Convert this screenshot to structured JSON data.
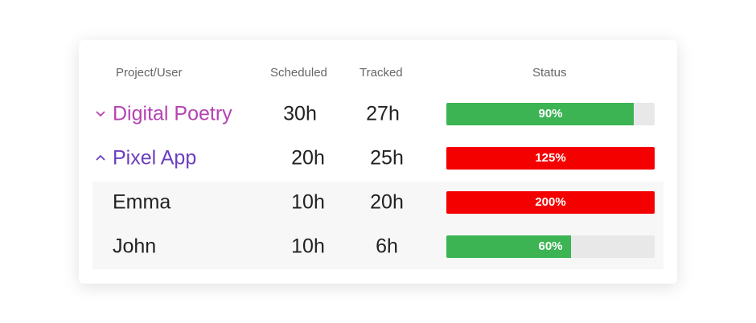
{
  "table": {
    "headers": [
      "Project/User",
      "Scheduled",
      "Tracked",
      "Status"
    ],
    "rows": [
      {
        "name": "Digital Poetry",
        "name_color": "#b543b3",
        "expand": "collapsed",
        "scheduled": "30h",
        "tracked": "27h",
        "status": {
          "value": 90,
          "label": "90%"
        },
        "status_color": "#3cb454"
      },
      {
        "name": "Pixel App",
        "name_color": "#6b3fc0",
        "expand": "expanded",
        "scheduled": "20h",
        "tracked": "25h",
        "status": {
          "value": 125,
          "label": "125%"
        },
        "status_color": "#f50000"
      },
      {
        "name": "Emma",
        "name_color": "#222222",
        "expand": "child",
        "scheduled": "10h",
        "tracked": "20h",
        "status": {
          "value": 200,
          "label": "200%"
        },
        "status_color": "#f50000"
      },
      {
        "name": "John",
        "name_color": "#222222",
        "expand": "child",
        "scheduled": "10h",
        "tracked": "6h",
        "status": {
          "value": 60,
          "label": "60%"
        },
        "status_color": "#3cb454"
      }
    ]
  }
}
